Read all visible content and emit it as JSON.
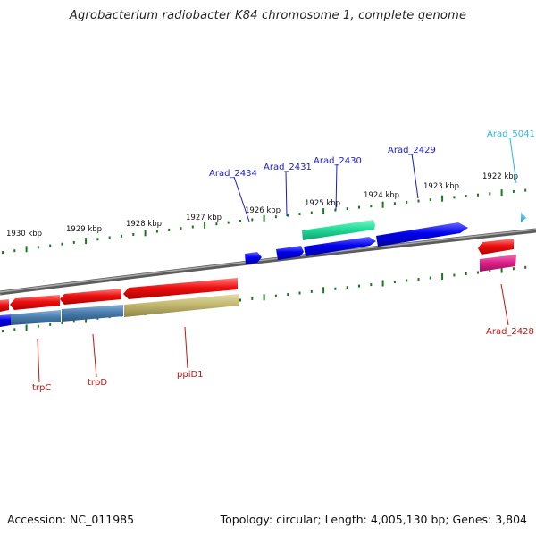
{
  "title": "Agrobacterium radiobacter K84 chromosome 1, complete genome",
  "footer": {
    "accession": "Accession: NC_011985",
    "summary": "Topology: circular; Length: 4,005,130 bp; Genes: 3,804"
  },
  "scale_labels": [
    "1930 kbp",
    "1929 kbp",
    "1928 kbp",
    "1927 kbp",
    "1926 kbp",
    "1925 kbp",
    "1924 kbp",
    "1923 kbp",
    "1922 kbp"
  ],
  "gene_labels": [
    {
      "text": "Arad_2434",
      "color": "#1a1acc"
    },
    {
      "text": "Arad_2431",
      "color": "#1a1acc"
    },
    {
      "text": "Arad_2430",
      "color": "#1a1acc"
    },
    {
      "text": "Arad_2429",
      "color": "#1a1acc"
    },
    {
      "text": "Arad_5041",
      "color": "#2ab8e0"
    },
    {
      "text": "Arad_2428",
      "color": "#cc1111"
    },
    {
      "text": "trpC",
      "color": "#cc1111"
    },
    {
      "text": "trpD",
      "color": "#cc1111"
    },
    {
      "text": "ppiD1",
      "color": "#cc1111"
    }
  ],
  "colors": {
    "backbone": "#7a7a7a",
    "tick": "#1a7a1a",
    "cds_forward": "#0000ee",
    "cds_reverse": "#ee0000",
    "trna": "#22dd99",
    "pink": "#e0208a",
    "steel": "#4a7fb0",
    "khaki": "#c2b870",
    "cyan": "#22b8e8"
  }
}
